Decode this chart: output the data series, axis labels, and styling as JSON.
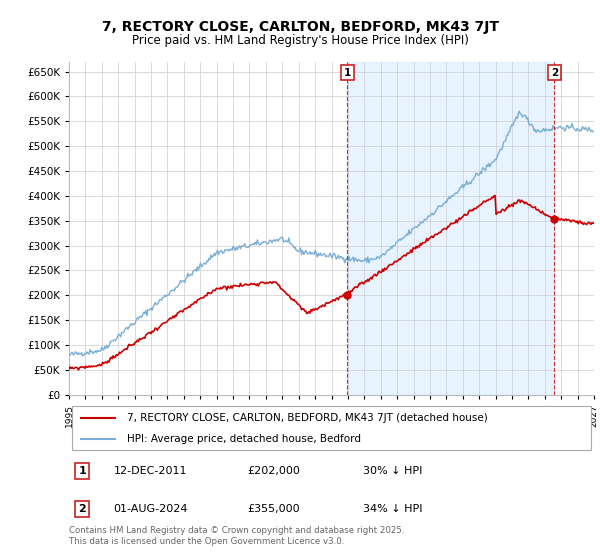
{
  "title": "7, RECTORY CLOSE, CARLTON, BEDFORD, MK43 7JT",
  "subtitle": "Price paid vs. HM Land Registry's House Price Index (HPI)",
  "ytick_values": [
    0,
    50000,
    100000,
    150000,
    200000,
    250000,
    300000,
    350000,
    400000,
    450000,
    500000,
    550000,
    600000,
    650000
  ],
  "ylim": [
    0,
    670000
  ],
  "sale1_year": 2011.958,
  "sale2_year": 2024.583,
  "sale1": {
    "date": "12-DEC-2011",
    "price": 202000,
    "hpi_note": "30% ↓ HPI",
    "label": "1"
  },
  "sale2": {
    "date": "01-AUG-2024",
    "price": 355000,
    "hpi_note": "34% ↓ HPI",
    "label": "2"
  },
  "legend_red": "7, RECTORY CLOSE, CARLTON, BEDFORD, MK43 7JT (detached house)",
  "legend_blue": "HPI: Average price, detached house, Bedford",
  "footer": "Contains HM Land Registry data © Crown copyright and database right 2025.\nThis data is licensed under the Open Government Licence v3.0.",
  "red_color": "#cc0000",
  "blue_color": "#7aaed4",
  "shade_color": "#ddeeff",
  "grid_color": "#cccccc",
  "badge_edge_color": "#cc2222"
}
